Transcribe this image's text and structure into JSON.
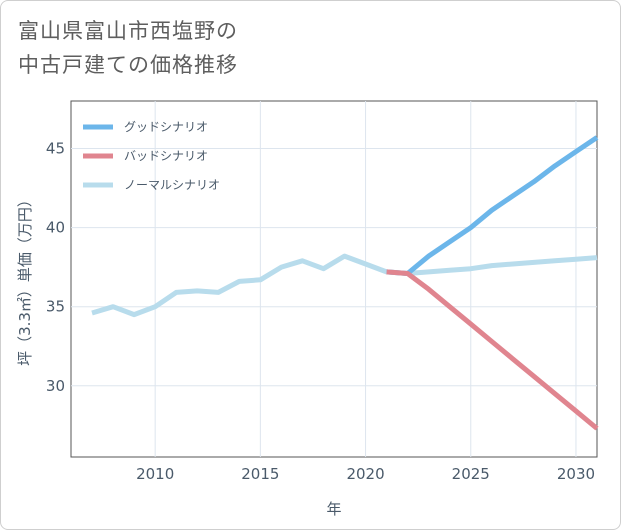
{
  "title_lines": [
    "富山県富山市西塩野の",
    "中古戸建ての価格推移"
  ],
  "chart_data": {
    "type": "line",
    "xlabel": "年",
    "ylabel": "坪（3.3㎡）単価（万円）",
    "xlim": [
      2006,
      2031
    ],
    "ylim": [
      25.5,
      48
    ],
    "x_ticks": [
      2010,
      2015,
      2020,
      2025,
      2030
    ],
    "y_ticks": [
      30,
      35,
      40,
      45
    ],
    "grid": true,
    "legend_position": "top-left",
    "series": [
      {
        "name": "グッドシナリオ",
        "color": "#6cb6ea",
        "x": [
          2021,
          2022,
          2023,
          2024,
          2025,
          2026,
          2027,
          2028,
          2029,
          2030,
          2031
        ],
        "y": [
          37.2,
          37.1,
          38.2,
          39.1,
          40.0,
          41.1,
          42.0,
          42.9,
          43.9,
          44.8,
          45.7
        ]
      },
      {
        "name": "バッドシナリオ",
        "color": "#e0858f",
        "x": [
          2021,
          2022,
          2023,
          2024,
          2025,
          2026,
          2027,
          2028,
          2029,
          2030,
          2031
        ],
        "y": [
          37.2,
          37.1,
          36.1,
          35.0,
          33.9,
          32.8,
          31.7,
          30.6,
          29.5,
          28.4,
          27.3
        ]
      },
      {
        "name": "ノーマルシナリオ",
        "color": "#b8dcec",
        "x": [
          2007,
          2008,
          2009,
          2010,
          2011,
          2012,
          2013,
          2014,
          2015,
          2016,
          2017,
          2018,
          2019,
          2020,
          2021,
          2022,
          2023,
          2024,
          2025,
          2026,
          2027,
          2028,
          2029,
          2030,
          2031
        ],
        "y": [
          34.6,
          35.0,
          34.5,
          35.0,
          35.9,
          36.0,
          35.9,
          36.6,
          36.7,
          37.5,
          37.9,
          37.4,
          38.2,
          37.7,
          37.2,
          37.1,
          37.2,
          37.3,
          37.4,
          37.6,
          37.7,
          37.8,
          37.9,
          38.0,
          38.1
        ]
      }
    ]
  }
}
